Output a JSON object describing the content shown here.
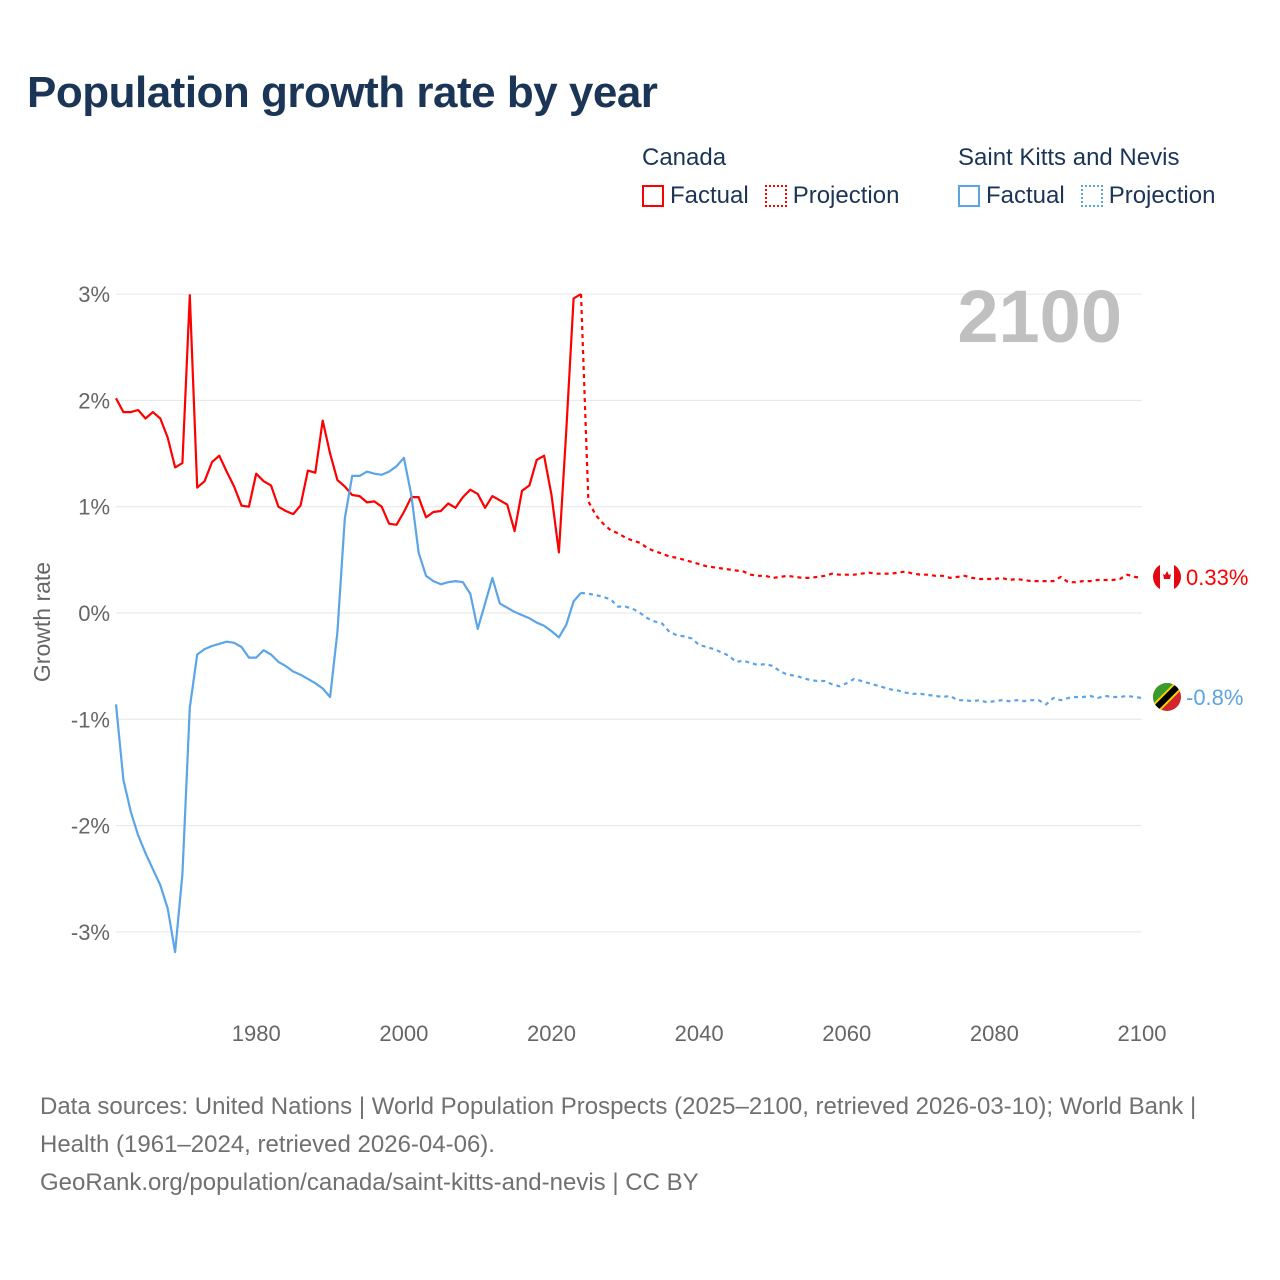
{
  "title": "Population growth rate by year",
  "legend": {
    "groups": [
      {
        "name": "Canada",
        "color": "#ff0000",
        "items": [
          "Factual",
          "Projection"
        ]
      },
      {
        "name": "Saint Kitts and Nevis",
        "color": "#5ba4e6",
        "items": [
          "Factual",
          "Projection"
        ]
      }
    ]
  },
  "year_watermark": "2100",
  "end_labels": {
    "canada": "0.33%",
    "skn": "-0.8%"
  },
  "footer": {
    "line1": "Data sources: United Nations | World Population Prospects (2025–2100, retrieved 2026-03-10); World Bank | Health (1961–2024, retrieved 2026-04-06).",
    "line2": "GeoRank.org/population/canada/saint-kitts-and-nevis | CC BY"
  },
  "chart_data": {
    "type": "line",
    "title": "Population growth rate by year",
    "xlabel": "",
    "ylabel": "Growth rate",
    "xlim": [
      1961,
      2100
    ],
    "ylim": [
      -3.5,
      3.2
    ],
    "xticks": [
      1980,
      2000,
      2020,
      2040,
      2060,
      2080,
      2100
    ],
    "yticks": [
      3,
      2,
      1,
      0,
      -1,
      -2,
      -3
    ],
    "ytick_labels": [
      "3%",
      "2%",
      "1%",
      "0%",
      "-1%",
      "-2%",
      "-3%"
    ],
    "grid": true,
    "legend_position": "top-right",
    "series": [
      {
        "name": "Canada Factual",
        "color": "#ff0000",
        "dashed": false,
        "x_start": 1961,
        "values": [
          2.02,
          1.89,
          1.89,
          1.91,
          1.83,
          1.89,
          1.83,
          1.65,
          1.37,
          1.41,
          2.99,
          1.18,
          1.24,
          1.42,
          1.48,
          1.33,
          1.19,
          1.01,
          1.0,
          1.31,
          1.24,
          1.2,
          1.0,
          0.96,
          0.93,
          1.01,
          1.34,
          1.32,
          1.81,
          1.5,
          1.25,
          1.19,
          1.11,
          1.1,
          1.04,
          1.05,
          1.0,
          0.84,
          0.83,
          0.95,
          1.09,
          1.09,
          0.9,
          0.95,
          0.96,
          1.03,
          0.99,
          1.09,
          1.16,
          1.12,
          0.99,
          1.1,
          1.06,
          1.02,
          0.77,
          1.15,
          1.2,
          1.44,
          1.48,
          1.11,
          0.57,
          1.72,
          2.96,
          3.0
        ]
      },
      {
        "name": "Canada Projection",
        "color": "#ff0000",
        "dashed": true,
        "x_start": 2024,
        "values": [
          3.0,
          1.05,
          0.92,
          0.84,
          0.78,
          0.75,
          0.71,
          0.68,
          0.66,
          0.61,
          0.58,
          0.56,
          0.53,
          0.52,
          0.5,
          0.48,
          0.46,
          0.44,
          0.43,
          0.42,
          0.41,
          0.4,
          0.39,
          0.36,
          0.35,
          0.35,
          0.33,
          0.34,
          0.35,
          0.34,
          0.33,
          0.33,
          0.34,
          0.35,
          0.37,
          0.36,
          0.36,
          0.36,
          0.37,
          0.38,
          0.37,
          0.37,
          0.37,
          0.38,
          0.39,
          0.37,
          0.36,
          0.36,
          0.35,
          0.35,
          0.33,
          0.34,
          0.35,
          0.33,
          0.32,
          0.32,
          0.32,
          0.33,
          0.31,
          0.32,
          0.31,
          0.3,
          0.3,
          0.3,
          0.3,
          0.34,
          0.29,
          0.29,
          0.3,
          0.3,
          0.31,
          0.31,
          0.31,
          0.32,
          0.36,
          0.34,
          0.33
        ]
      },
      {
        "name": "Saint Kitts and Nevis Factual",
        "color": "#5ba4e6",
        "dashed": false,
        "x_start": 1961,
        "values": [
          -0.86,
          -1.57,
          -1.87,
          -2.09,
          -2.26,
          -2.41,
          -2.56,
          -2.78,
          -3.19,
          -2.46,
          -0.89,
          -0.39,
          -0.34,
          -0.31,
          -0.29,
          -0.27,
          -0.28,
          -0.32,
          -0.42,
          -0.42,
          -0.35,
          -0.39,
          -0.46,
          -0.5,
          -0.55,
          -0.58,
          -0.62,
          -0.66,
          -0.71,
          -0.79,
          -0.18,
          0.89,
          1.29,
          1.29,
          1.33,
          1.31,
          1.3,
          1.33,
          1.38,
          1.46,
          1.11,
          0.57,
          0.35,
          0.3,
          0.27,
          0.29,
          0.3,
          0.29,
          0.18,
          -0.15,
          0.09,
          0.33,
          0.09,
          0.05,
          0.01,
          -0.02,
          -0.05,
          -0.09,
          -0.12,
          -0.17,
          -0.23,
          -0.11,
          0.11,
          0.19
        ]
      },
      {
        "name": "Saint Kitts and Nevis Projection",
        "color": "#5ba4e6",
        "dashed": true,
        "x_start": 2024,
        "values": [
          0.19,
          0.18,
          0.17,
          0.15,
          0.13,
          0.06,
          0.06,
          0.04,
          0.0,
          -0.05,
          -0.08,
          -0.1,
          -0.18,
          -0.21,
          -0.22,
          -0.24,
          -0.3,
          -0.32,
          -0.34,
          -0.37,
          -0.4,
          -0.46,
          -0.45,
          -0.47,
          -0.49,
          -0.48,
          -0.5,
          -0.55,
          -0.58,
          -0.59,
          -0.61,
          -0.63,
          -0.64,
          -0.64,
          -0.67,
          -0.69,
          -0.66,
          -0.62,
          -0.64,
          -0.66,
          -0.68,
          -0.7,
          -0.72,
          -0.73,
          -0.75,
          -0.76,
          -0.76,
          -0.77,
          -0.78,
          -0.79,
          -0.78,
          -0.82,
          -0.82,
          -0.83,
          -0.82,
          -0.84,
          -0.83,
          -0.82,
          -0.83,
          -0.82,
          -0.83,
          -0.82,
          -0.82,
          -0.86,
          -0.8,
          -0.82,
          -0.8,
          -0.79,
          -0.79,
          -0.78,
          -0.8,
          -0.78,
          -0.79,
          -0.79,
          -0.78,
          -0.79,
          -0.8
        ]
      }
    ]
  }
}
